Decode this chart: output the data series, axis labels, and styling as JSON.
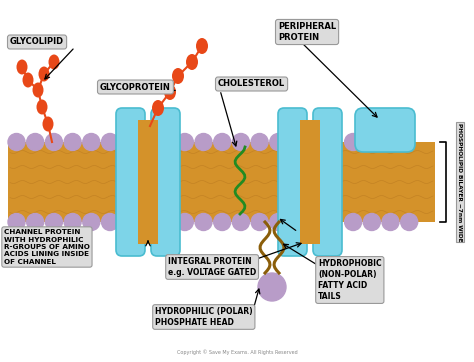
{
  "bg_color": "#ffffff",
  "membrane_color": "#D4922A",
  "phospholipid_head_color": "#B89CC8",
  "protein_color": "#7DD4E8",
  "protein_edge_color": "#4ABCD0",
  "cholesterol_color": "#228B22",
  "glyco_bead_color": "#E84818",
  "fatty_acid_color": "#8B5E0A",
  "label_bg": "#DCDCDC",
  "label_edge": "#999999",
  "copyright": "Copyright © Save My Exams. All Rights Reserved",
  "labels": {
    "glycolipid": "GLYCOLIPID",
    "glycoprotein": "GLYCOPROTEIN",
    "peripheral_protein": "PERIPHERAL\nPROTEIN",
    "cholesterol": "CHOLESTEROL",
    "channel_protein": "CHANNEL PROTEIN\nWITH HYDROPHILIC\nR-GROUPS OF AMINO\nACIDS LINING INSIDE\nOF CHANNEL",
    "integral_protein": "INTEGRAL PROTEIN\ne.g. VOLTAGE GATED",
    "hydrophilic_head": "HYDROPHILIC (POLAR)\nPHOSPHATE HEAD",
    "hydrophobic_tail": "HYDROPHOBIC\n(NON-POLAR)\nFATTY ACID\nTAILS",
    "bilayer": "PHOSPHOLIPID BILAYER ~7nm WIDE"
  }
}
